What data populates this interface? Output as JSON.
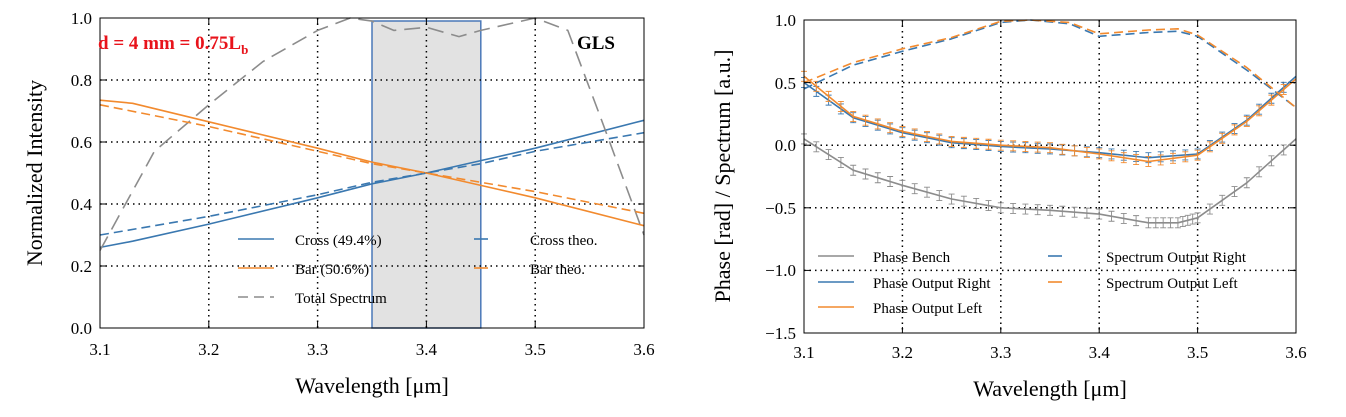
{
  "figure": {
    "colors": {
      "cross": "#3a78b0",
      "bar": "#f28a2e",
      "total": "#8c8c8c",
      "shade": "#e2e2e2",
      "shade_edge": "#4a78b8",
      "annotation_red": "#e8131b"
    }
  },
  "chart_data": [
    {
      "type": "line",
      "title": "",
      "xlabel": "Wavelength [μm]",
      "ylabel": "Normalized Intensity",
      "xlim": [
        3.1,
        3.6
      ],
      "ylim": [
        0.0,
        1.0
      ],
      "xticks": [
        "3.1",
        "3.2",
        "3.3",
        "3.4",
        "3.5",
        "3.6"
      ],
      "yticks": [
        "0.0",
        "0.2",
        "0.4",
        "0.6",
        "0.8",
        "1.0"
      ],
      "grid": true,
      "annotation": "d = 4 mm = 0.75L",
      "annotation_sub": "b",
      "label_corner": "GLS",
      "shaded_span": [
        3.35,
        3.45
      ],
      "series": [
        {
          "name": "Cross (49.4%)",
          "color": "#3a78b0",
          "style": "solid",
          "x": [
            3.1,
            3.13,
            3.2,
            3.3,
            3.35,
            3.4,
            3.45,
            3.5,
            3.6
          ],
          "y": [
            0.26,
            0.28,
            0.335,
            0.42,
            0.465,
            0.5,
            0.54,
            0.58,
            0.67
          ]
        },
        {
          "name": "Bar (50.6%)",
          "color": "#f28a2e",
          "style": "solid",
          "x": [
            3.1,
            3.13,
            3.2,
            3.3,
            3.35,
            3.4,
            3.45,
            3.5,
            3.6
          ],
          "y": [
            0.735,
            0.725,
            0.665,
            0.58,
            0.535,
            0.5,
            0.46,
            0.42,
            0.33
          ]
        },
        {
          "name": "Total Spectrum",
          "color": "#8c8c8c",
          "style": "longdash",
          "x": [
            3.1,
            3.15,
            3.2,
            3.25,
            3.3,
            3.33,
            3.35,
            3.37,
            3.4,
            3.43,
            3.45,
            3.5,
            3.53,
            3.56,
            3.6
          ],
          "y": [
            0.25,
            0.57,
            0.72,
            0.86,
            0.96,
            1.0,
            0.99,
            0.96,
            0.97,
            0.94,
            0.96,
            1.0,
            0.96,
            0.68,
            0.3
          ]
        },
        {
          "name": "Cross theo.",
          "color": "#3a78b0",
          "style": "dash",
          "x": [
            3.1,
            3.2,
            3.3,
            3.35,
            3.4,
            3.45,
            3.5,
            3.6
          ],
          "y": [
            0.3,
            0.36,
            0.43,
            0.47,
            0.5,
            0.53,
            0.57,
            0.63
          ]
        },
        {
          "name": "Bar theo.",
          "color": "#f28a2e",
          "style": "dash",
          "x": [
            3.1,
            3.2,
            3.3,
            3.35,
            3.4,
            3.45,
            3.5,
            3.6
          ],
          "y": [
            0.72,
            0.65,
            0.57,
            0.53,
            0.5,
            0.47,
            0.44,
            0.37
          ]
        }
      ]
    },
    {
      "type": "line",
      "title": "",
      "xlabel": "Wavelength [μm]",
      "ylabel": "Phase [rad] / Spectrum [a.u.]",
      "xlim": [
        3.1,
        3.6
      ],
      "ylim": [
        -1.5,
        1.0
      ],
      "xticks": [
        "3.1",
        "3.2",
        "3.3",
        "3.4",
        "3.5",
        "3.6"
      ],
      "yticks": [
        "−1.5",
        "−1.0",
        "−0.5",
        "0.0",
        "0.5",
        "1.0"
      ],
      "grid": true,
      "series": [
        {
          "name": "Phase Bench",
          "color": "#8c8c8c",
          "style": "solid",
          "errorbars": true,
          "x": [
            3.1,
            3.15,
            3.2,
            3.25,
            3.3,
            3.35,
            3.4,
            3.45,
            3.48,
            3.5,
            3.55,
            3.6
          ],
          "y": [
            0.05,
            -0.2,
            -0.32,
            -0.43,
            -0.5,
            -0.52,
            -0.55,
            -0.62,
            -0.62,
            -0.58,
            -0.3,
            0.05
          ]
        },
        {
          "name": "Phase Output Right",
          "color": "#3a78b0",
          "style": "solid",
          "errorbars": true,
          "x": [
            3.1,
            3.15,
            3.2,
            3.25,
            3.3,
            3.35,
            3.4,
            3.45,
            3.5,
            3.55,
            3.6
          ],
          "y": [
            0.5,
            0.22,
            0.1,
            0.02,
            -0.01,
            -0.03,
            -0.06,
            -0.1,
            -0.07,
            0.2,
            0.55
          ]
        },
        {
          "name": "Phase Output Left",
          "color": "#f28a2e",
          "style": "solid",
          "errorbars": true,
          "x": [
            3.1,
            3.15,
            3.2,
            3.25,
            3.3,
            3.35,
            3.4,
            3.45,
            3.5,
            3.55,
            3.6
          ],
          "y": [
            0.55,
            0.23,
            0.11,
            0.03,
            0.0,
            -0.02,
            -0.07,
            -0.13,
            -0.08,
            0.19,
            0.53
          ]
        },
        {
          "name": "Spectrum Output Right",
          "color": "#3a78b0",
          "style": "dash",
          "x": [
            3.1,
            3.15,
            3.2,
            3.25,
            3.3,
            3.33,
            3.37,
            3.4,
            3.45,
            3.48,
            3.5,
            3.55,
            3.6
          ],
          "y": [
            0.45,
            0.64,
            0.75,
            0.85,
            0.98,
            1.0,
            0.97,
            0.87,
            0.9,
            0.91,
            0.87,
            0.6,
            0.3
          ]
        },
        {
          "name": "Spectrum Output Left",
          "color": "#f28a2e",
          "style": "dash",
          "x": [
            3.1,
            3.15,
            3.2,
            3.25,
            3.3,
            3.33,
            3.37,
            3.4,
            3.45,
            3.48,
            3.5,
            3.55,
            3.6
          ],
          "y": [
            0.5,
            0.66,
            0.77,
            0.86,
            0.99,
            1.0,
            0.98,
            0.89,
            0.92,
            0.93,
            0.88,
            0.62,
            0.3
          ]
        }
      ]
    }
  ]
}
